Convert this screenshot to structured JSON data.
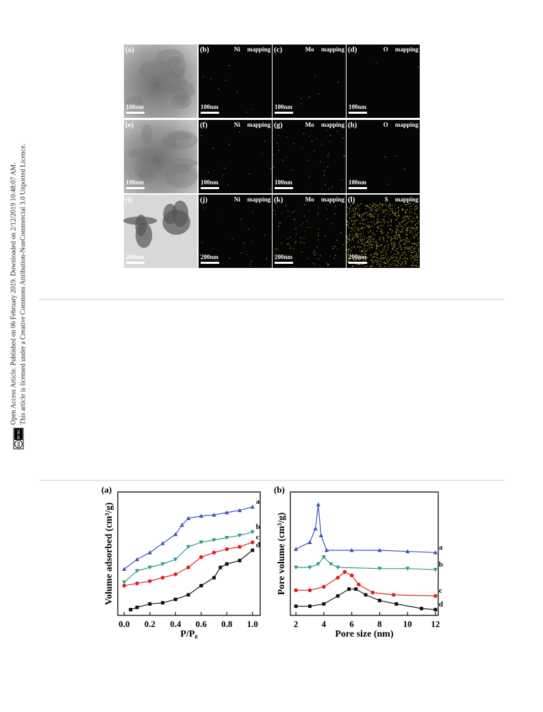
{
  "sidebar": {
    "line1": "Open Access Article. Published on 06 February 2019. Downloaded on 2/12/2019 10:48:07 AM.",
    "line2": "This article is licensed under a Creative Commons Attribution-NonCommercial 3.0 Unported Licence.",
    "badge": {
      "icon": "cc",
      "text": "BY-NC"
    }
  },
  "figure": {
    "rows": [
      [
        {
          "label": "(a)",
          "scale": "100nm"
        },
        {
          "label": "(b)",
          "caption": "Ni mapping",
          "scale": "100nm"
        },
        {
          "label": "(c)",
          "caption": "Mo mapping",
          "scale": "100nm"
        },
        {
          "label": "(d)",
          "caption": "O mapping",
          "scale": "100nm"
        }
      ],
      [
        {
          "label": "(e)",
          "scale": "100nm"
        },
        {
          "label": "(f)",
          "caption": "Ni mapping",
          "scale": "100nm"
        },
        {
          "label": "(g)",
          "caption": "Mo mapping",
          "scale": "100nm"
        },
        {
          "label": "(h)",
          "caption": "O mapping",
          "scale": "100nm"
        }
      ],
      [
        {
          "label": "(i)",
          "scale": "200nm"
        },
        {
          "label": "(j)",
          "caption": "Ni mapping",
          "scale": "200nm"
        },
        {
          "label": "(k)",
          "caption": "Mo mapping",
          "scale": "200nm"
        },
        {
          "label": "(l)",
          "caption": "S mapping",
          "scale": "200nm"
        }
      ]
    ]
  },
  "chart_data": [
    {
      "type": "line",
      "panel": "(a)",
      "x_label": "P/P₀",
      "y_label": "Volume adsorbed (cm³/g)",
      "xlim": [
        -0.05,
        1.06
      ],
      "ylim": [
        -3,
        105
      ],
      "xticks": [
        {
          "value": 0,
          "label": "0.0"
        },
        0.2,
        0.4,
        0.6,
        0.8,
        {
          "value": 1,
          "label": "1.0"
        }
      ],
      "series": [
        {
          "name": "a",
          "color": "#3f4fbf",
          "marker": "triangle-up",
          "x": [
            0.0,
            0.1,
            0.2,
            0.3,
            0.4,
            0.45,
            0.5,
            0.6,
            0.7,
            0.8,
            0.9,
            1.0
          ],
          "values": [
            37.5,
            46,
            52,
            60,
            68,
            76,
            82,
            84,
            85,
            87,
            89,
            92
          ]
        },
        {
          "name": "b",
          "color": "#2a9a8a",
          "marker": "triangle-down",
          "x": [
            0.0,
            0.1,
            0.2,
            0.3,
            0.4,
            0.5,
            0.6,
            0.7,
            0.8,
            0.9,
            1.0
          ],
          "values": [
            26,
            36,
            39,
            42,
            46,
            57,
            61,
            63,
            65,
            67,
            70
          ]
        },
        {
          "name": "c",
          "color": "#e02020",
          "marker": "circle",
          "x": [
            0.0,
            0.1,
            0.2,
            0.3,
            0.4,
            0.5,
            0.6,
            0.7,
            0.8,
            0.9,
            1.0
          ],
          "values": [
            23,
            25,
            27,
            30,
            33,
            39,
            48,
            52,
            55,
            57,
            61
          ]
        },
        {
          "name": "d",
          "color": "#111111",
          "marker": "square",
          "x": [
            0.05,
            0.1,
            0.2,
            0.3,
            0.4,
            0.5,
            0.6,
            0.7,
            0.75,
            0.8,
            0.9,
            1.0
          ],
          "values": [
            2,
            4,
            7,
            8,
            11,
            15,
            23,
            30,
            39,
            42,
            45,
            54
          ]
        }
      ]
    },
    {
      "type": "line",
      "panel": "(b)",
      "x_label": "Pore size (nm)",
      "y_label": "Pore volume (cm³/g)",
      "xlim": [
        1.6,
        12.2
      ],
      "ylim": [
        -3,
        105
      ],
      "xticks": [
        2,
        4,
        6,
        8,
        10,
        12
      ],
      "series": [
        {
          "name": "a",
          "color": "#3f4fbf",
          "marker": "triangle-up",
          "x": [
            2.0,
            3.0,
            3.4,
            3.6,
            3.8,
            4.2,
            6,
            8,
            10,
            12
          ],
          "values": [
            55,
            61,
            73,
            94,
            67,
            54,
            54,
            54,
            53,
            52
          ]
        },
        {
          "name": "b",
          "color": "#2a9a8a",
          "marker": "triangle-down",
          "x": [
            2.0,
            3.0,
            3.6,
            4.0,
            4.5,
            5.0,
            8,
            10,
            12
          ],
          "values": [
            39,
            39,
            42,
            48,
            42,
            39,
            38,
            38,
            37
          ]
        },
        {
          "name": "c",
          "color": "#e02020",
          "marker": "circle",
          "x": [
            2.0,
            3.0,
            4.0,
            5.0,
            5.5,
            6.0,
            6.5,
            7.5,
            9.0,
            12
          ],
          "values": [
            19,
            19,
            22,
            30,
            35,
            32,
            24,
            17,
            15,
            14
          ]
        },
        {
          "name": "d",
          "color": "#111111",
          "marker": "square",
          "x": [
            2.0,
            3.0,
            4.0,
            5.0,
            5.8,
            6.3,
            7.0,
            8.0,
            9.2,
            11,
            12
          ],
          "values": [
            5,
            5,
            7,
            14,
            20,
            20,
            15,
            10,
            7,
            3,
            2
          ]
        }
      ]
    }
  ]
}
